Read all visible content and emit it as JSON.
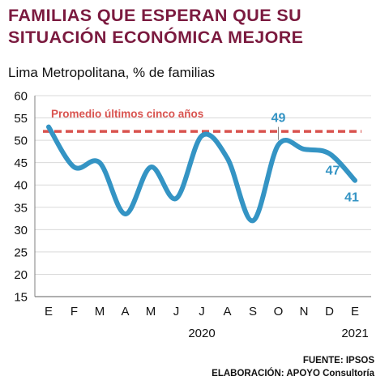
{
  "title_line1": "FAMILIAS QUE ESPERAN QUE SU",
  "title_line2": "SITUACIÓN ECONÓMICA MEJORE",
  "subtitle": "Lima Metropolitana, % de familias",
  "source_line1": "FUENTE: IPSOS",
  "source_line2": "ELABORACIÓN: APOYO Consultoría",
  "colors": {
    "title": "#7b1a3f",
    "series": "#3494c4",
    "average": "#d9534f",
    "grid": "#d9d9d9"
  },
  "chart_data": {
    "type": "line",
    "x": [
      "E",
      "F",
      "M",
      "A",
      "M",
      "J",
      "J",
      "A",
      "S",
      "O",
      "N",
      "D",
      "E"
    ],
    "year_labels": [
      {
        "label": "2020",
        "at_index": 6
      },
      {
        "label": "2021",
        "at_index": 12
      }
    ],
    "series": [
      {
        "values": [
          53,
          44,
          45,
          33.5,
          44,
          37,
          51,
          46,
          32,
          49,
          48,
          47,
          41
        ]
      }
    ],
    "reference_line": {
      "label": "Promedio últimos cinco años",
      "value": 52
    },
    "point_labels": [
      {
        "index": 9,
        "text": "49"
      },
      {
        "index": 11,
        "text": "47"
      },
      {
        "index": 12,
        "text": "41"
      }
    ],
    "ylim": [
      15,
      60
    ],
    "yticks": [
      15,
      20,
      25,
      30,
      35,
      40,
      45,
      50,
      55,
      60
    ],
    "grid": true,
    "legend": "none"
  }
}
